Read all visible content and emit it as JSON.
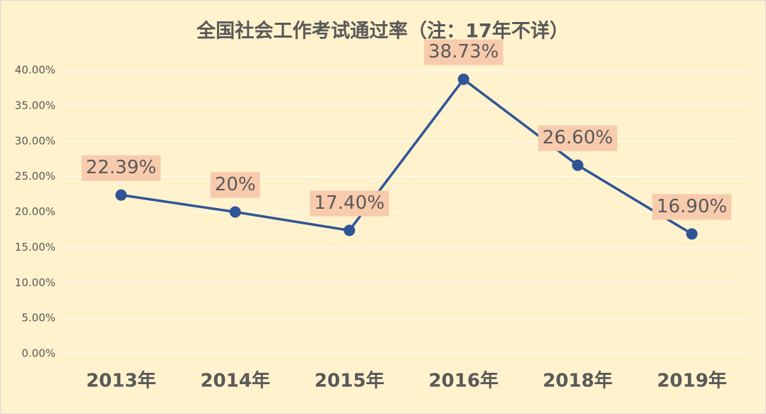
{
  "chart_data": {
    "type": "line",
    "title": "全国社会工作考试通过率（注：17年不详）",
    "categories": [
      "2013年",
      "2014年",
      "2015年",
      "2016年",
      "2018年",
      "2019年"
    ],
    "series": [
      {
        "name": "通过率",
        "color": "#2f5597",
        "values": [
          22.39,
          20,
          17.4,
          38.73,
          26.6,
          16.9
        ],
        "value_labels": [
          "22.39%",
          "20%",
          "17.40%",
          "38.73%",
          "26.60%",
          "16.90%"
        ]
      }
    ],
    "ylim": [
      0,
      40
    ],
    "yticks": [
      {
        "value": 0,
        "label": "0.00%"
      },
      {
        "value": 5,
        "label": "5.00%"
      },
      {
        "value": 10,
        "label": "10.00%"
      },
      {
        "value": 15,
        "label": "15.00%"
      },
      {
        "value": 20,
        "label": "20.00%"
      },
      {
        "value": 25,
        "label": "25.00%"
      },
      {
        "value": 30,
        "label": "30.00%"
      },
      {
        "value": 35,
        "label": "35.00%"
      },
      {
        "value": 40,
        "label": "40.00%"
      }
    ],
    "grid": true,
    "label_box_color": "#f8cbad"
  }
}
